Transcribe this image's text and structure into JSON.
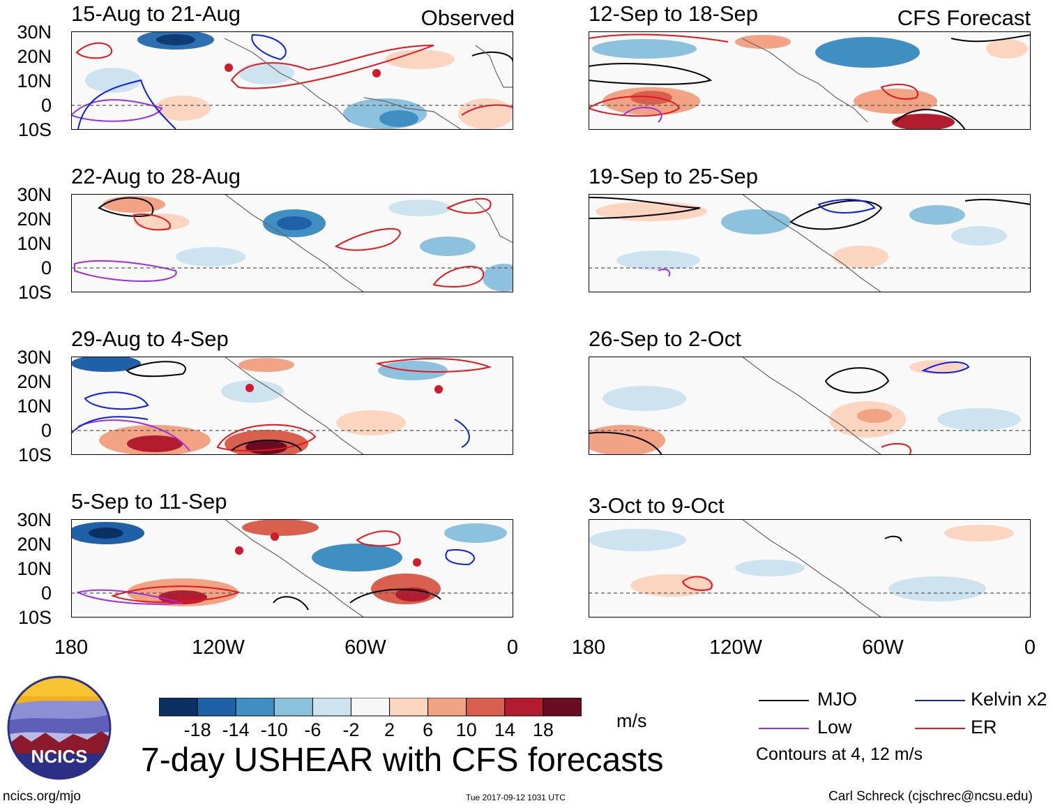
{
  "panels": [
    {
      "title": "15-Aug to 21-Aug",
      "tag": "Observed"
    },
    {
      "title": "22-Aug to 28-Aug",
      "tag": ""
    },
    {
      "title": "29-Aug to 4-Sep",
      "tag": ""
    },
    {
      "title": "5-Sep to 11-Sep",
      "tag": ""
    },
    {
      "title": "12-Sep to 18-Sep",
      "tag": "CFS Forecast"
    },
    {
      "title": "19-Sep to 25-Sep",
      "tag": ""
    },
    {
      "title": "26-Sep to 2-Oct",
      "tag": ""
    },
    {
      "title": "3-Oct to 9-Oct",
      "tag": ""
    }
  ],
  "lat_labels": [
    "30N",
    "20N",
    "10N",
    "0",
    "10S"
  ],
  "lon_labels": [
    "180",
    "120W",
    "60W",
    "0"
  ],
  "colorbar": {
    "labels": [
      "-18",
      "-14",
      "-10",
      "-6",
      "-2",
      "2",
      "6",
      "10",
      "14",
      "18"
    ],
    "colors": [
      "#0b3163",
      "#1f61a8",
      "#3f8fc3",
      "#8cc2dd",
      "#cde3ef",
      "#f7f7f7",
      "#fbd5c0",
      "#f2a383",
      "#d9604f",
      "#b31b2f",
      "#690c22"
    ],
    "unit": "m/s"
  },
  "legend": {
    "items": [
      {
        "label": "MJO",
        "color": "#000000"
      },
      {
        "label": "Kelvin x2",
        "color": "#0a1ee8"
      },
      {
        "label": "Low",
        "color": "#9b30e0"
      },
      {
        "label": "ER",
        "color": "#e4161c"
      }
    ],
    "note": "Contours at 4, 12 m/s"
  },
  "title": "7-day USHEAR with CFS forecasts",
  "logo_text": "NCICS",
  "footer": {
    "left": "ncics.org/mjo",
    "center": "Tue 2017-09-12 1031 UTC",
    "right": "Carl Schreck (cjschrec@ncsu.edu)"
  }
}
